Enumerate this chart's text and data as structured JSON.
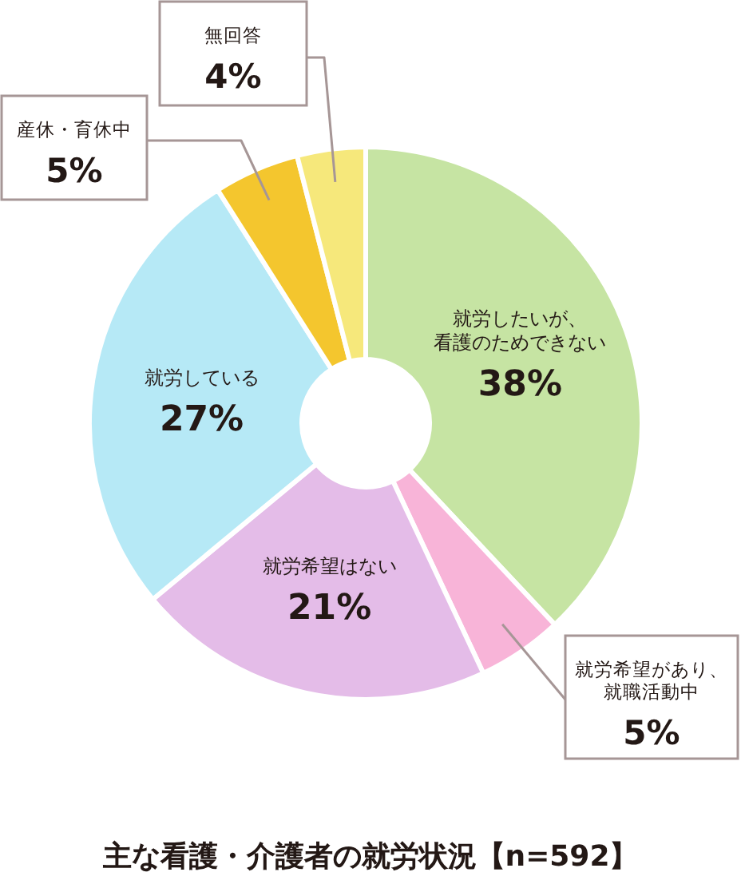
{
  "chart_data": {
    "type": "donut",
    "title": "主な看護・介護者の就労状況【n=592】",
    "categories": [
      "就労したいが、看護のためできない",
      "就労希望があり、就職活動中",
      "就労希望はない",
      "就労している",
      "産休・育休中",
      "無回答"
    ],
    "values": [
      38,
      5,
      21,
      27,
      5,
      4
    ],
    "colors": [
      "#c6e4a3",
      "#f8b4d8",
      "#e4bce8",
      "#b6e9f6",
      "#f4c62e",
      "#f6e87b"
    ],
    "value_labels": [
      "38%",
      "5%",
      "21%",
      "27%",
      "5%",
      "4%"
    ]
  }
}
